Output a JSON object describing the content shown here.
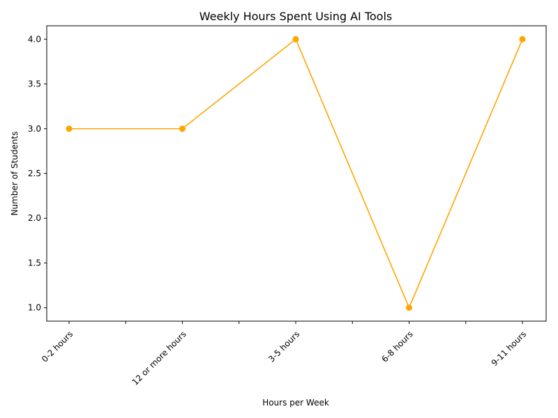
{
  "chart_data": {
    "type": "line",
    "title": "Weekly Hours Spent Using AI Tools",
    "xlabel": "Hours per Week",
    "ylabel": "Number of Students",
    "categories": [
      "0-2 hours",
      "12 or more hours",
      "3-5 hours",
      "6-8 hours",
      "9-11 hours"
    ],
    "series": [
      {
        "values": [
          3,
          3,
          4,
          1,
          4
        ]
      }
    ],
    "ylim": [
      0.85,
      4.15
    ],
    "yticks": [
      "1.0",
      "1.5",
      "2.0",
      "2.5",
      "3.0",
      "3.5",
      "4.0"
    ],
    "grid": false,
    "legend": "none",
    "line_color": "#FFA500",
    "marker": "circle"
  }
}
